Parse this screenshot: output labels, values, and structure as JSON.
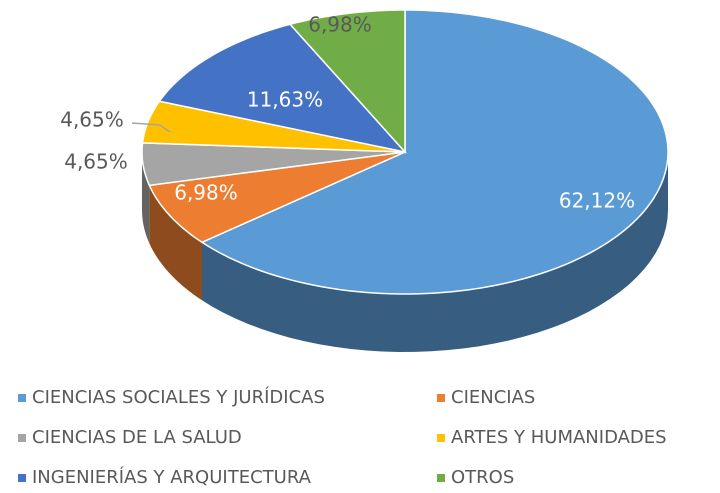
{
  "chart_data": {
    "type": "pie",
    "categories": [
      "CIENCIAS SOCIALES Y JURÍDICAS",
      "CIENCIAS",
      "CIENCIAS DE LA SALUD",
      "ARTES Y HUMANIDADES",
      "INGENIERÍAS Y ARQUITECTURA",
      "OTROS"
    ],
    "values": [
      62.12,
      6.98,
      4.65,
      4.65,
      11.63,
      6.98
    ],
    "value_labels": [
      "62,12%",
      "6,98%",
      "4,65%",
      "4,65%",
      "11,63%",
      "6,98%"
    ],
    "colors": [
      "#5b9bd5",
      "#ed7d31",
      "#a5a5a5",
      "#ffc000",
      "#4472c4",
      "#70ad47"
    ],
    "legend": "bottom"
  }
}
